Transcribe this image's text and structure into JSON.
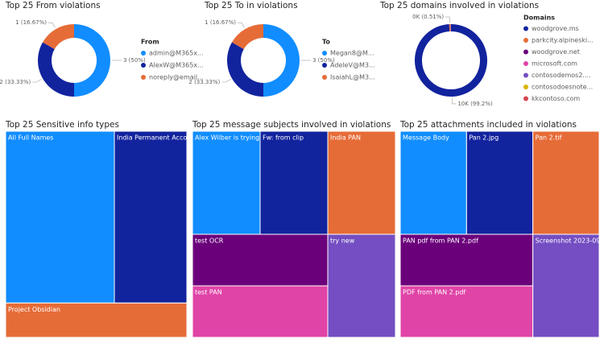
{
  "chart_data": [
    {
      "type": "donut",
      "title": "Top 25 From violations",
      "legend_title": "From",
      "categories": [
        "admin@M365x...",
        "AlexW@M365x...",
        "noreply@email..."
      ],
      "values": [
        3,
        2,
        1
      ],
      "value_labels": [
        "3 (50%)",
        "2 (33.33%)",
        "1 (16.67%)"
      ],
      "colors": [
        "#118DFF",
        "#12239E",
        "#E66C37"
      ]
    },
    {
      "type": "donut",
      "title": "Top 25 To in violations",
      "legend_title": "To",
      "categories": [
        "Megan8@M...",
        "AdeleV@M3...",
        "IsaiahL@M3..."
      ],
      "values": [
        3,
        2,
        1
      ],
      "value_labels": [
        "3 (50%)",
        "2 (33.33%)",
        "1 (16.67%)"
      ],
      "colors": [
        "#118DFF",
        "#12239E",
        "#E66C37"
      ]
    },
    {
      "type": "donut",
      "title": "Top 25 domains involved in violations",
      "legend_title": "Domains",
      "categories": [
        "woodgrove.ms",
        "parkcity.alpineski...",
        "woodgrove.net",
        "microsoft.com",
        "contosodemos2....",
        "contosodoesnote...",
        "kkcontoso.com"
      ],
      "values": [
        9920,
        51,
        6,
        6,
        6,
        6,
        5
      ],
      "value_labels": [
        "10K (99.2%)",
        "0K (0.51%)",
        null,
        null,
        null,
        null,
        null
      ],
      "colors": [
        "#12239E",
        "#E66C37",
        "#6B007B",
        "#E044A7",
        "#744EC2",
        "#D9B300",
        "#D64550"
      ]
    },
    {
      "type": "treemap",
      "title": "Top 25 Sensitive info types",
      "categories": [
        "All Full Names",
        "India Permanent Acco...",
        "Project Obsidian"
      ],
      "values": [
        3,
        2,
        1
      ],
      "colors": [
        "#118DFF",
        "#12239E",
        "#E66C37"
      ]
    },
    {
      "type": "treemap",
      "title": "Top 25 message subjects involved in violations",
      "categories": [
        "Alex Wilber is trying ...",
        "Fw: from clip",
        "India PAN",
        "test OCR",
        "test PAN",
        "try new"
      ],
      "values": [
        1,
        1,
        1,
        1,
        1,
        1
      ],
      "colors": [
        "#118DFF",
        "#12239E",
        "#E66C37",
        "#6B007B",
        "#E044A7",
        "#744EC2"
      ]
    },
    {
      "type": "treemap",
      "title": "Top 25 attachments included in violations",
      "categories": [
        "Message Body",
        "Pan 2.jpg",
        "Pan 2.tif",
        "PAN pdf from PAN 2.pdf",
        "PDF from PAN 2.pdf",
        "Screenshot 2023-09..."
      ],
      "values": [
        1,
        1,
        1,
        1,
        1,
        1
      ],
      "colors": [
        "#118DFF",
        "#12239E",
        "#E66C37",
        "#6B007B",
        "#E044A7",
        "#744EC2"
      ]
    }
  ]
}
